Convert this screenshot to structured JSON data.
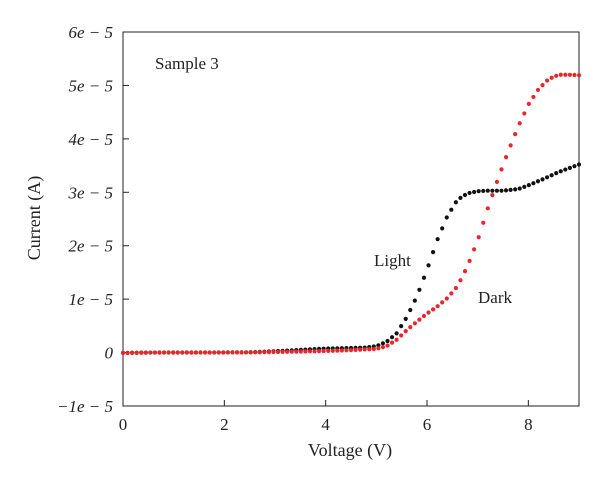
{
  "chart_data": {
    "type": "scatter",
    "xlabel": "Voltage (V)",
    "ylabel": "Current (A)",
    "annotation": "Sample 3",
    "xlim": [
      0,
      9
    ],
    "ylim": [
      -1e-05,
      6e-05
    ],
    "x_ticks": [
      {
        "value": 0,
        "label": "0"
      },
      {
        "value": 2,
        "label": "2"
      },
      {
        "value": 4,
        "label": "4"
      },
      {
        "value": 6,
        "label": "6"
      },
      {
        "value": 8,
        "label": "8"
      }
    ],
    "y_ticks": [
      {
        "value": -1e-05,
        "label": "−1e − 5"
      },
      {
        "value": 0,
        "label": "0"
      },
      {
        "value": 1e-05,
        "label": "1e − 5"
      },
      {
        "value": 2e-05,
        "label": "2e − 5"
      },
      {
        "value": 3e-05,
        "label": "3e − 5"
      },
      {
        "value": 4e-05,
        "label": "4e − 5"
      },
      {
        "value": 5e-05,
        "label": "5e − 5"
      },
      {
        "value": 6e-05,
        "label": "6e − 5"
      }
    ],
    "grid": false,
    "series": [
      {
        "name": "Light",
        "color": "#111111",
        "points": [
          [
            0.0,
            -0.06
          ],
          [
            0.5,
            0.0
          ],
          [
            1.0,
            0.02
          ],
          [
            1.5,
            0.02
          ],
          [
            2.0,
            0.03
          ],
          [
            2.5,
            0.05
          ],
          [
            3.0,
            0.25
          ],
          [
            3.5,
            0.5
          ],
          [
            4.0,
            0.75
          ],
          [
            4.5,
            0.85
          ],
          [
            4.8,
            0.95
          ],
          [
            5.0,
            1.2
          ],
          [
            5.2,
            2.0
          ],
          [
            5.4,
            3.6
          ],
          [
            5.6,
            6.6
          ],
          [
            5.8,
            10.5
          ],
          [
            6.0,
            15.5
          ],
          [
            6.2,
            21.0
          ],
          [
            6.4,
            25.5
          ],
          [
            6.6,
            28.6
          ],
          [
            6.8,
            29.8
          ],
          [
            7.0,
            30.2
          ],
          [
            7.2,
            30.3
          ],
          [
            7.5,
            30.3
          ],
          [
            7.8,
            30.6
          ],
          [
            8.0,
            31.3
          ],
          [
            8.3,
            32.5
          ],
          [
            8.6,
            33.8
          ],
          [
            9.0,
            35.2
          ]
        ]
      },
      {
        "name": "Dark",
        "color": "#e8262c",
        "points": [
          [
            0.0,
            -0.08
          ],
          [
            0.5,
            0.0
          ],
          [
            1.0,
            0.01
          ],
          [
            1.5,
            0.01
          ],
          [
            2.0,
            0.02
          ],
          [
            2.5,
            0.03
          ],
          [
            3.0,
            0.1
          ],
          [
            3.5,
            0.2
          ],
          [
            4.0,
            0.3
          ],
          [
            4.5,
            0.45
          ],
          [
            5.0,
            0.7
          ],
          [
            5.2,
            1.2
          ],
          [
            5.4,
            2.4
          ],
          [
            5.6,
            4.2
          ],
          [
            5.8,
            5.8
          ],
          [
            6.0,
            7.3
          ],
          [
            6.2,
            8.6
          ],
          [
            6.4,
            10.2
          ],
          [
            6.6,
            12.4
          ],
          [
            6.8,
            16.2
          ],
          [
            7.0,
            21.0
          ],
          [
            7.2,
            27.0
          ],
          [
            7.4,
            32.5
          ],
          [
            7.6,
            37.6
          ],
          [
            7.8,
            42.3
          ],
          [
            8.0,
            46.4
          ],
          [
            8.2,
            49.3
          ],
          [
            8.4,
            51.2
          ],
          [
            8.6,
            52.0
          ],
          [
            8.8,
            52.0
          ],
          [
            9.0,
            51.9
          ]
        ]
      }
    ],
    "series_labels": {
      "light": "Light",
      "dark": "Dark"
    }
  }
}
